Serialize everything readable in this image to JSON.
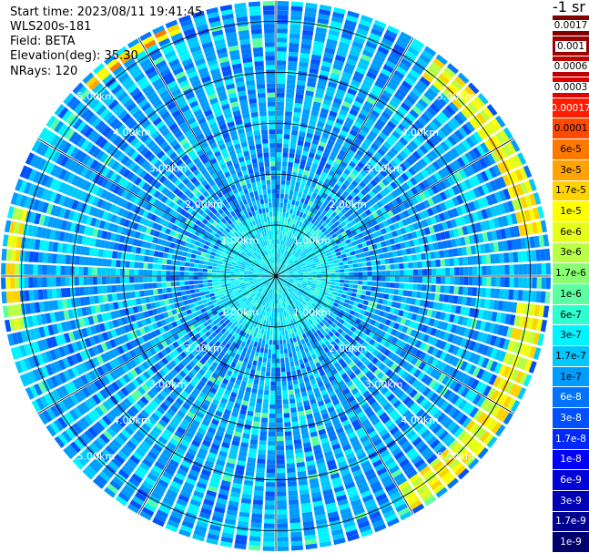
{
  "info": {
    "start_time": "Start time: 2023/08/11 19:41:45",
    "device": "WLS200s-181",
    "field": "Field: BETA",
    "elevation": "Elevation(deg): 35.30",
    "nrays": "NRays: 120"
  },
  "colors": {
    "background": "#ffffff",
    "grid": "#000000",
    "ray_separator": "#ffffff"
  },
  "chart_data": {
    "type": "heatmap",
    "subtype": "polar-ppi",
    "variable": "BETA",
    "unit_label": "-1 sr",
    "nrays": 120,
    "range_km_max": 5.4,
    "range_rings_km": [
      1,
      2,
      3,
      4,
      5
    ],
    "ring_labels": [
      "1.00km",
      "2.00km",
      "3.00km",
      "4.00km",
      "5.00km"
    ],
    "radial_lines_deg": [
      0,
      30,
      60,
      90,
      120,
      150,
      180,
      210,
      240,
      270,
      300,
      330
    ],
    "colorbar": {
      "labels": [
        "0.0017",
        "0.001",
        "0.0006",
        "0.0003",
        "0.00017",
        "0.0001",
        "6e-5",
        "3e-5",
        "1.7e-5",
        "1e-5",
        "6e-6",
        "3e-6",
        "1.7e-6",
        "1e-6",
        "6e-7",
        "3e-7",
        "1.7e-7",
        "1e-7",
        "6e-8",
        "3e-8",
        "1.7e-8",
        "1e-8",
        "6e-9",
        "3e-9",
        "1.7e-9",
        "1e-9"
      ],
      "colors": [
        "#800000",
        "#9c0000",
        "#c00000",
        "#e00000",
        "#ff1c00",
        "#ff4a00",
        "#ff7800",
        "#ffa400",
        "#ffd200",
        "#ffff00",
        "#e6ff18",
        "#b8ff46",
        "#8aff74",
        "#5cffa2",
        "#2effd0",
        "#00f4ff",
        "#00c8ff",
        "#009cff",
        "#0074ff",
        "#0050ff",
        "#0028ff",
        "#0000ff",
        "#0000d8",
        "#0000b4",
        "#000090",
        "#00006c"
      ]
    },
    "features": [
      {
        "description": "aerosol band",
        "level": "1e-5",
        "range_km": [
          4.9,
          5.3
        ],
        "azimuth_deg": [
          35,
          80
        ]
      },
      {
        "description": "aerosol band",
        "level": "1e-5",
        "range_km": [
          4.8,
          5.3
        ],
        "azimuth_deg": [
          95,
          150
        ]
      },
      {
        "description": "aerosol band",
        "level": "1e-5",
        "range_km": [
          5.0,
          5.3
        ],
        "azimuth_deg": [
          258,
          285
        ]
      },
      {
        "description": "aerosol band",
        "level": "3e-5",
        "range_km": [
          5.1,
          5.35
        ],
        "azimuth_deg": [
          315,
          340
        ]
      }
    ]
  }
}
